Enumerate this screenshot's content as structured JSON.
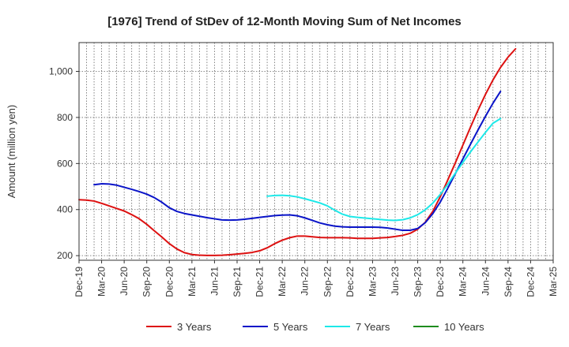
{
  "chart_data": {
    "type": "line",
    "title": "[1976]  Trend of StDev of 12-Month Moving Sum of Net Incomes",
    "ylabel": "Amount (million yen)",
    "xlabel": "",
    "ylim": [
      180,
      1125
    ],
    "yticks": [
      200,
      400,
      600,
      800,
      1000
    ],
    "ytick_labels": [
      "200",
      "400",
      "600",
      "800",
      "1,000"
    ],
    "xtick_labels": [
      "Dec-19",
      "Mar-20",
      "Jun-20",
      "Sep-20",
      "Dec-20",
      "Mar-21",
      "Jun-21",
      "Sep-21",
      "Dec-21",
      "Mar-22",
      "Jun-22",
      "Sep-22",
      "Dec-22",
      "Mar-23",
      "Jun-23",
      "Sep-23",
      "Dec-23",
      "Mar-24",
      "Jun-24",
      "Sep-24",
      "Dec-24",
      "Mar-25"
    ],
    "grid": true,
    "legend_position": "bottom",
    "series": [
      {
        "name": "3 Years",
        "color": "#dd1111",
        "start_index": 0,
        "values": [
          443,
          441,
          437,
          427,
          416,
          405,
          394,
          378,
          360,
          336,
          308,
          281,
          252,
          229,
          213,
          205,
          202,
          201,
          201,
          202,
          204,
          207,
          210,
          214,
          221,
          234,
          252,
          267,
          278,
          285,
          285,
          282,
          279,
          278,
          278,
          278,
          277,
          275,
          275,
          275,
          277,
          279,
          283,
          288,
          297,
          315,
          345,
          392,
          456,
          529,
          603,
          680,
          757,
          831,
          900,
          963,
          1017,
          1062,
          1098
        ]
      },
      {
        "name": "5 Years",
        "color": "#0a14c8",
        "start_index": 2,
        "values": [
          508,
          512,
          511,
          506,
          497,
          488,
          478,
          467,
          452,
          432,
          408,
          392,
          383,
          377,
          371,
          365,
          360,
          355,
          354,
          355,
          358,
          362,
          366,
          370,
          374,
          376,
          377,
          373,
          364,
          353,
          342,
          334,
          328,
          325,
          324,
          324,
          324,
          324,
          323,
          320,
          315,
          310,
          310,
          318,
          343,
          382,
          433,
          493,
          556,
          620,
          683,
          745,
          805,
          862,
          913
        ]
      },
      {
        "name": "7 Years",
        "color": "#1de8e8",
        "start_index": 25,
        "values": [
          458,
          461,
          462,
          460,
          455,
          447,
          438,
          429,
          416,
          397,
          380,
          370,
          366,
          363,
          360,
          357,
          354,
          353,
          356,
          364,
          378,
          399,
          428,
          466,
          510,
          558,
          605,
          650,
          693,
          735,
          775,
          795
        ]
      },
      {
        "name": "10 Years",
        "color": "#1e8c1e",
        "start_index": 0,
        "values": []
      }
    ]
  }
}
